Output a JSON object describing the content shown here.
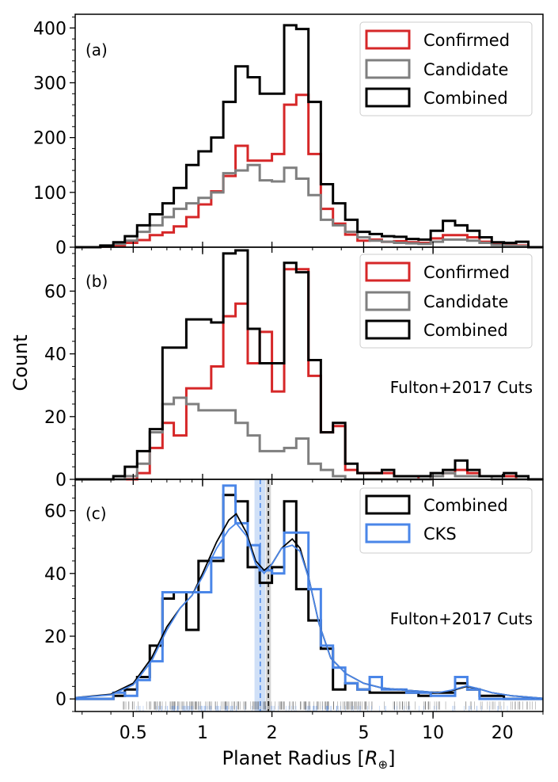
{
  "chart_data": {
    "type": "histogram",
    "xlabel": "Planet Radius [R_⊕]",
    "xlabel_main": "Planet Radius [",
    "xlabel_sub": "⊕",
    "xlabel_end": "]",
    "ylabel": "Count",
    "x_scale": "log",
    "xlim": [
      0.28,
      30
    ],
    "x_ticks": [
      0.5,
      1,
      2,
      5,
      10,
      20
    ],
    "x_tick_labels": [
      "0.5",
      "1",
      "2",
      "5",
      "10",
      "20"
    ],
    "bin_edges": [
      0.28,
      0.32,
      0.36,
      0.41,
      0.46,
      0.52,
      0.59,
      0.67,
      0.75,
      0.85,
      0.96,
      1.09,
      1.23,
      1.39,
      1.57,
      1.77,
      2.0,
      2.26,
      2.55,
      2.88,
      3.26,
      3.68,
      4.16,
      4.7,
      5.31,
      6.0,
      6.78,
      7.66,
      8.65,
      9.77,
      11.04,
      12.47,
      14.09,
      15.92,
      17.98,
      20.31,
      22.95,
      25.93,
      30.0
    ],
    "colors": {
      "confirmed": "#d62728",
      "candidate": "#7f7f7f",
      "combined": "#000000",
      "cks": "#4a86e8"
    },
    "panels": [
      {
        "label": "(a)",
        "ylim": [
          0,
          425
        ],
        "y_ticks": [
          0,
          100,
          200,
          300,
          400
        ],
        "y_tick_labels": [
          "0",
          "100",
          "200",
          "300",
          "400"
        ],
        "series": [
          {
            "name": "Confirmed",
            "color": "#d62728",
            "values": [
              0,
              0,
              1,
              3,
              8,
              13,
              22,
              27,
              38,
              55,
              78,
              102,
              130,
              185,
              158,
              158,
              170,
              260,
              278,
              170,
              70,
              43,
              23,
              12,
              14,
              10,
              11,
              9,
              8,
              16,
              22,
              22,
              18,
              10,
              5,
              5,
              3,
              0
            ]
          },
          {
            "name": "Candidate",
            "color": "#7f7f7f",
            "values": [
              0,
              0,
              2,
              6,
              12,
              28,
              40,
              55,
              70,
              80,
              90,
              100,
              135,
              140,
              150,
              122,
              120,
              145,
              125,
              95,
              50,
              40,
              28,
              18,
              12,
              10,
              8,
              7,
              6,
              10,
              14,
              14,
              12,
              8,
              4,
              3,
              2,
              0
            ]
          },
          {
            "name": "Combined",
            "color": "#000000",
            "values": [
              0,
              0,
              3,
              9,
              20,
              40,
              60,
              80,
              108,
              150,
              175,
              200,
              265,
              330,
              310,
              280,
              280,
              405,
              398,
              265,
              115,
              80,
              50,
              28,
              24,
              20,
              19,
              15,
              14,
              30,
              48,
              40,
              30,
              18,
              9,
              8,
              10,
              0
            ]
          }
        ]
      },
      {
        "label": "(b)",
        "ylim": [
          0,
          74
        ],
        "y_ticks": [
          0,
          20,
          40,
          60
        ],
        "y_tick_labels": [
          "0",
          "20",
          "40",
          "60"
        ],
        "note": "Fulton+2017 Cuts",
        "series": [
          {
            "name": "Confirmed",
            "color": "#d62728",
            "values": [
              0,
              0,
              0,
              0,
              0,
              2,
              10,
              18,
              14,
              29,
              29,
              36,
              52,
              56,
              37,
              47,
              28,
              67,
              67,
              33,
              15,
              17,
              3,
              2,
              2,
              2,
              1,
              1,
              0,
              1,
              2,
              3,
              2,
              1,
              1,
              1,
              0,
              0
            ]
          },
          {
            "name": "Candidate",
            "color": "#7f7f7f",
            "values": [
              0,
              0,
              0,
              0,
              1,
              5,
              15,
              24,
              26,
              24,
              22,
              22,
              22,
              18,
              14,
              9,
              9,
              10,
              13,
              5,
              3,
              1,
              0,
              0,
              0,
              0,
              0,
              0,
              0,
              1,
              2,
              1,
              1,
              1,
              0,
              0,
              0,
              0
            ]
          },
          {
            "name": "Combined",
            "color": "#000000",
            "values": [
              0,
              0,
              0,
              1,
              4,
              9,
              16,
              42,
              42,
              51,
              51,
              50,
              72,
              73,
              48,
              37,
              37,
              69,
              66,
              38,
              15,
              18,
              5,
              2,
              2,
              3,
              1,
              1,
              1,
              2,
              3,
              6,
              3,
              1,
              1,
              2,
              1,
              0
            ]
          }
        ]
      },
      {
        "label": "(c)",
        "ylim": [
          0,
          70
        ],
        "ylim_bottom": -4,
        "y_ticks": [
          0,
          20,
          40,
          60
        ],
        "y_tick_labels": [
          "0",
          "20",
          "40",
          "60"
        ],
        "note": "Fulton+2017 Cuts",
        "series": [
          {
            "name": "Combined",
            "color": "#000000",
            "values": [
              0,
              0,
              0,
              1,
              3,
              7,
              17,
              32,
              34,
              22,
              44,
              44,
              65,
              63,
              42,
              37,
              42,
              63,
              35,
              25,
              16,
              3,
              5,
              3,
              2,
              2,
              2,
              2,
              1,
              2,
              2,
              5,
              3,
              1,
              1,
              0,
              0,
              0
            ]
          },
          {
            "name": "CKS",
            "color": "#4a86e8",
            "values": [
              0,
              0,
              0,
              2,
              1,
              6,
              12,
              34,
              34,
              34,
              34,
              45,
              68,
              56,
              49,
              41,
              40,
              53,
              53,
              35,
              17,
              10,
              5,
              3,
              7,
              3,
              3,
              2,
              2,
              1,
              1,
              7,
              3,
              0,
              0,
              0,
              0,
              0
            ]
          }
        ],
        "kde_curves": [
          {
            "color": "#000000",
            "points": [
              [
                0.28,
                0.4
              ],
              [
                0.4,
                1.5
              ],
              [
                0.5,
                5
              ],
              [
                0.6,
                13
              ],
              [
                0.7,
                23
              ],
              [
                0.8,
                29
              ],
              [
                0.9,
                33
              ],
              [
                1.0,
                40
              ],
              [
                1.15,
                50
              ],
              [
                1.3,
                57
              ],
              [
                1.4,
                59
              ],
              [
                1.55,
                53
              ],
              [
                1.7,
                44
              ],
              [
                1.85,
                41
              ],
              [
                2.0,
                43
              ],
              [
                2.2,
                48
              ],
              [
                2.45,
                51
              ],
              [
                2.65,
                48
              ],
              [
                2.9,
                38
              ],
              [
                3.2,
                24
              ],
              [
                3.6,
                13
              ],
              [
                4.2,
                8
              ],
              [
                5.0,
                5
              ],
              [
                6.0,
                3.5
              ],
              [
                7.5,
                2.8
              ],
              [
                9.0,
                2.4
              ],
              [
                10.5,
                2
              ],
              [
                12.0,
                2.6
              ],
              [
                14.0,
                4
              ],
              [
                15.5,
                3.4
              ],
              [
                18.0,
                2
              ],
              [
                22.0,
                1
              ],
              [
                30.0,
                0.2
              ]
            ]
          },
          {
            "color": "#4a86e8",
            "points": [
              [
                0.28,
                0.4
              ],
              [
                0.4,
                1.3
              ],
              [
                0.5,
                4.5
              ],
              [
                0.6,
                12
              ],
              [
                0.7,
                22
              ],
              [
                0.8,
                29
              ],
              [
                0.9,
                33
              ],
              [
                1.0,
                39
              ],
              [
                1.15,
                48
              ],
              [
                1.3,
                54
              ],
              [
                1.4,
                56
              ],
              [
                1.55,
                52
              ],
              [
                1.7,
                43
              ],
              [
                1.85,
                40
              ],
              [
                2.0,
                43
              ],
              [
                2.2,
                48
              ],
              [
                2.45,
                49
              ],
              [
                2.65,
                47
              ],
              [
                2.9,
                38
              ],
              [
                3.2,
                24
              ],
              [
                3.6,
                13
              ],
              [
                4.2,
                8
              ],
              [
                5.0,
                5
              ],
              [
                6.0,
                3.5
              ],
              [
                7.5,
                2.8
              ],
              [
                9.0,
                2.4
              ],
              [
                10.5,
                2
              ],
              [
                12.0,
                2.8
              ],
              [
                14.0,
                4.2
              ],
              [
                15.5,
                3.4
              ],
              [
                18.0,
                2
              ],
              [
                22.0,
                1
              ],
              [
                30.0,
                0.2
              ]
            ]
          }
        ],
        "valley": {
          "combined": 1.93,
          "cks": 1.78,
          "combined_band": [
            1.88,
            1.98
          ],
          "cks_band": [
            1.68,
            1.87
          ]
        }
      }
    ]
  },
  "legends": {
    "a": {
      "items": [
        {
          "label": "Confirmed",
          "color": "#d62728"
        },
        {
          "label": "Candidate",
          "color": "#7f7f7f"
        },
        {
          "label": "Combined",
          "color": "#000000"
        }
      ]
    },
    "b": {
      "items": [
        {
          "label": "Confirmed",
          "color": "#d62728"
        },
        {
          "label": "Candidate",
          "color": "#7f7f7f"
        },
        {
          "label": "Combined",
          "color": "#000000"
        }
      ]
    },
    "c": {
      "items": [
        {
          "label": "Combined",
          "color": "#000000"
        },
        {
          "label": "CKS",
          "color": "#4a86e8"
        }
      ]
    }
  }
}
